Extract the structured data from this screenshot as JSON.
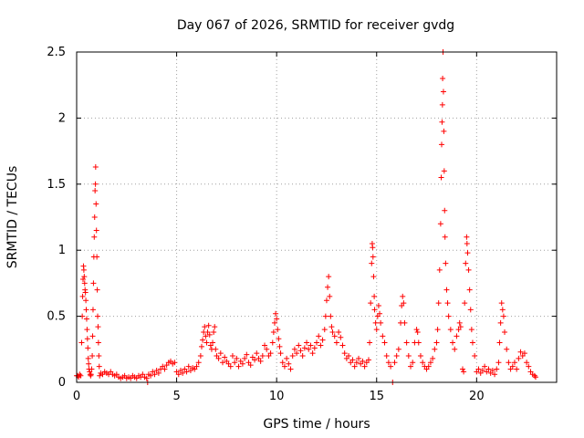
{
  "chart_data": {
    "type": "scatter",
    "title": "Day 067 of 2026, SRMTID for receiver gvdg",
    "xlabel": "GPS time / hours",
    "ylabel": "SRMTID / TECUs",
    "xlim": [
      0,
      24
    ],
    "ylim": [
      0,
      2.5
    ],
    "xticks": [
      0,
      5,
      10,
      15,
      20
    ],
    "xtick_labels": [
      "0",
      "5",
      "10",
      "15",
      "20"
    ],
    "yticks": [
      0,
      0.5,
      1,
      1.5,
      2,
      2.5
    ],
    "ytick_labels": [
      "0",
      "0.5",
      "1",
      "1.5",
      "2",
      "2.5"
    ],
    "grid": true,
    "marker": "+",
    "color": "#ff0000",
    "series": [
      {
        "name": "SRMTID",
        "points": [
          [
            0.0,
            0.05
          ],
          [
            0.05,
            0.05
          ],
          [
            0.1,
            0.04
          ],
          [
            0.15,
            0.06
          ],
          [
            0.2,
            0.05
          ],
          [
            0.25,
            0.3
          ],
          [
            0.28,
            0.5
          ],
          [
            0.3,
            0.65
          ],
          [
            0.32,
            0.78
          ],
          [
            0.34,
            0.88
          ],
          [
            0.36,
            0.85
          ],
          [
            0.38,
            0.8
          ],
          [
            0.4,
            0.75
          ],
          [
            0.42,
            0.7
          ],
          [
            0.44,
            0.68
          ],
          [
            0.46,
            0.62
          ],
          [
            0.48,
            0.55
          ],
          [
            0.5,
            0.48
          ],
          [
            0.52,
            0.4
          ],
          [
            0.54,
            0.33
          ],
          [
            0.56,
            0.26
          ],
          [
            0.58,
            0.18
          ],
          [
            0.6,
            0.14
          ],
          [
            0.62,
            0.1
          ],
          [
            0.65,
            0.08
          ],
          [
            0.68,
            0.06
          ],
          [
            0.7,
            0.05
          ],
          [
            0.72,
            0.06
          ],
          [
            0.75,
            0.1
          ],
          [
            0.78,
            0.2
          ],
          [
            0.8,
            0.35
          ],
          [
            0.82,
            0.55
          ],
          [
            0.84,
            0.75
          ],
          [
            0.86,
            0.95
          ],
          [
            0.88,
            1.1
          ],
          [
            0.9,
            1.25
          ],
          [
            0.92,
            1.45
          ],
          [
            0.94,
            1.5
          ],
          [
            0.95,
            1.63
          ],
          [
            0.97,
            1.35
          ],
          [
            0.99,
            1.15
          ],
          [
            1.01,
            0.95
          ],
          [
            1.03,
            0.7
          ],
          [
            1.05,
            0.5
          ],
          [
            1.07,
            0.42
          ],
          [
            1.09,
            0.3
          ],
          [
            1.11,
            0.2
          ],
          [
            1.13,
            0.12
          ],
          [
            1.15,
            0.05
          ],
          [
            1.2,
            0.07
          ],
          [
            1.3,
            0.06
          ],
          [
            1.4,
            0.08
          ],
          [
            1.5,
            0.07
          ],
          [
            1.6,
            0.06
          ],
          [
            1.7,
            0.08
          ],
          [
            1.8,
            0.06
          ],
          [
            1.9,
            0.05
          ],
          [
            2.0,
            0.06
          ],
          [
            2.1,
            0.04
          ],
          [
            2.2,
            0.03
          ],
          [
            2.3,
            0.04
          ],
          [
            2.4,
            0.05
          ],
          [
            2.5,
            0.03
          ],
          [
            2.6,
            0.04
          ],
          [
            2.7,
            0.03
          ],
          [
            2.8,
            0.05
          ],
          [
            2.9,
            0.04
          ],
          [
            3.0,
            0.03
          ],
          [
            3.1,
            0.05
          ],
          [
            3.2,
            0.04
          ],
          [
            3.3,
            0.06
          ],
          [
            3.4,
            0.04
          ],
          [
            3.5,
            0.03
          ],
          [
            3.55,
            0.0
          ],
          [
            3.6,
            0.06
          ],
          [
            3.7,
            0.05
          ],
          [
            3.8,
            0.08
          ],
          [
            3.9,
            0.06
          ],
          [
            4.0,
            0.09
          ],
          [
            4.1,
            0.07
          ],
          [
            4.2,
            0.1
          ],
          [
            4.3,
            0.12
          ],
          [
            4.4,
            0.1
          ],
          [
            4.5,
            0.13
          ],
          [
            4.6,
            0.15
          ],
          [
            4.7,
            0.16
          ],
          [
            4.8,
            0.14
          ],
          [
            4.9,
            0.15
          ],
          [
            5.0,
            0.08
          ],
          [
            5.1,
            0.06
          ],
          [
            5.2,
            0.09
          ],
          [
            5.3,
            0.07
          ],
          [
            5.4,
            0.1
          ],
          [
            5.5,
            0.08
          ],
          [
            5.6,
            0.12
          ],
          [
            5.7,
            0.09
          ],
          [
            5.8,
            0.11
          ],
          [
            5.9,
            0.1
          ],
          [
            6.0,
            0.12
          ],
          [
            6.1,
            0.15
          ],
          [
            6.2,
            0.2
          ],
          [
            6.25,
            0.27
          ],
          [
            6.3,
            0.32
          ],
          [
            6.35,
            0.38
          ],
          [
            6.4,
            0.42
          ],
          [
            6.45,
            0.35
          ],
          [
            6.5,
            0.3
          ],
          [
            6.55,
            0.38
          ],
          [
            6.6,
            0.43
          ],
          [
            6.65,
            0.36
          ],
          [
            6.7,
            0.28
          ],
          [
            6.75,
            0.25
          ],
          [
            6.8,
            0.3
          ],
          [
            6.85,
            0.38
          ],
          [
            6.9,
            0.42
          ],
          [
            6.95,
            0.25
          ],
          [
            7.0,
            0.2
          ],
          [
            7.1,
            0.18
          ],
          [
            7.2,
            0.22
          ],
          [
            7.3,
            0.15
          ],
          [
            7.4,
            0.19
          ],
          [
            7.5,
            0.16
          ],
          [
            7.6,
            0.14
          ],
          [
            7.7,
            0.12
          ],
          [
            7.8,
            0.2
          ],
          [
            7.9,
            0.15
          ],
          [
            8.0,
            0.18
          ],
          [
            8.1,
            0.12
          ],
          [
            8.2,
            0.16
          ],
          [
            8.3,
            0.14
          ],
          [
            8.4,
            0.18
          ],
          [
            8.5,
            0.21
          ],
          [
            8.6,
            0.15
          ],
          [
            8.7,
            0.13
          ],
          [
            8.8,
            0.19
          ],
          [
            8.9,
            0.17
          ],
          [
            9.0,
            0.22
          ],
          [
            9.1,
            0.18
          ],
          [
            9.2,
            0.16
          ],
          [
            9.3,
            0.2
          ],
          [
            9.4,
            0.28
          ],
          [
            9.5,
            0.25
          ],
          [
            9.6,
            0.2
          ],
          [
            9.7,
            0.22
          ],
          [
            9.8,
            0.3
          ],
          [
            9.85,
            0.38
          ],
          [
            9.9,
            0.45
          ],
          [
            9.95,
            0.52
          ],
          [
            10.0,
            0.48
          ],
          [
            10.05,
            0.4
          ],
          [
            10.1,
            0.33
          ],
          [
            10.15,
            0.27
          ],
          [
            10.2,
            0.22
          ],
          [
            10.3,
            0.15
          ],
          [
            10.4,
            0.12
          ],
          [
            10.5,
            0.18
          ],
          [
            10.6,
            0.14
          ],
          [
            10.7,
            0.1
          ],
          [
            10.8,
            0.2
          ],
          [
            10.9,
            0.25
          ],
          [
            11.0,
            0.22
          ],
          [
            11.1,
            0.28
          ],
          [
            11.2,
            0.24
          ],
          [
            11.3,
            0.2
          ],
          [
            11.4,
            0.26
          ],
          [
            11.5,
            0.3
          ],
          [
            11.6,
            0.25
          ],
          [
            11.7,
            0.28
          ],
          [
            11.8,
            0.22
          ],
          [
            11.9,
            0.26
          ],
          [
            12.0,
            0.3
          ],
          [
            12.1,
            0.35
          ],
          [
            12.2,
            0.28
          ],
          [
            12.3,
            0.32
          ],
          [
            12.4,
            0.4
          ],
          [
            12.45,
            0.5
          ],
          [
            12.5,
            0.62
          ],
          [
            12.55,
            0.72
          ],
          [
            12.6,
            0.8
          ],
          [
            12.65,
            0.65
          ],
          [
            12.7,
            0.5
          ],
          [
            12.75,
            0.42
          ],
          [
            12.8,
            0.38
          ],
          [
            12.9,
            0.35
          ],
          [
            13.0,
            0.3
          ],
          [
            13.1,
            0.38
          ],
          [
            13.2,
            0.34
          ],
          [
            13.3,
            0.28
          ],
          [
            13.4,
            0.22
          ],
          [
            13.5,
            0.18
          ],
          [
            13.6,
            0.2
          ],
          [
            13.7,
            0.15
          ],
          [
            13.8,
            0.17
          ],
          [
            13.9,
            0.12
          ],
          [
            14.0,
            0.15
          ],
          [
            14.1,
            0.18
          ],
          [
            14.2,
            0.14
          ],
          [
            14.3,
            0.16
          ],
          [
            14.4,
            0.12
          ],
          [
            14.5,
            0.15
          ],
          [
            14.6,
            0.17
          ],
          [
            14.65,
            0.3
          ],
          [
            14.7,
            0.6
          ],
          [
            14.75,
            0.9
          ],
          [
            14.78,
            1.05
          ],
          [
            14.8,
            1.02
          ],
          [
            14.82,
            0.95
          ],
          [
            14.85,
            0.8
          ],
          [
            14.88,
            0.65
          ],
          [
            14.9,
            0.55
          ],
          [
            14.95,
            0.45
          ],
          [
            15.0,
            0.4
          ],
          [
            15.05,
            0.5
          ],
          [
            15.1,
            0.58
          ],
          [
            15.15,
            0.52
          ],
          [
            15.2,
            0.45
          ],
          [
            15.3,
            0.35
          ],
          [
            15.4,
            0.3
          ],
          [
            15.5,
            0.2
          ],
          [
            15.6,
            0.15
          ],
          [
            15.7,
            0.12
          ],
          [
            15.8,
            0.0
          ],
          [
            15.9,
            0.15
          ],
          [
            16.0,
            0.2
          ],
          [
            16.1,
            0.25
          ],
          [
            16.2,
            0.45
          ],
          [
            16.25,
            0.58
          ],
          [
            16.3,
            0.65
          ],
          [
            16.35,
            0.6
          ],
          [
            16.4,
            0.45
          ],
          [
            16.5,
            0.3
          ],
          [
            16.6,
            0.2
          ],
          [
            16.7,
            0.12
          ],
          [
            16.8,
            0.15
          ],
          [
            16.9,
            0.3
          ],
          [
            17.0,
            0.4
          ],
          [
            17.05,
            0.38
          ],
          [
            17.1,
            0.3
          ],
          [
            17.2,
            0.2
          ],
          [
            17.3,
            0.15
          ],
          [
            17.4,
            0.12
          ],
          [
            17.5,
            0.1
          ],
          [
            17.6,
            0.12
          ],
          [
            17.7,
            0.15
          ],
          [
            17.8,
            0.18
          ],
          [
            17.9,
            0.25
          ],
          [
            18.0,
            0.3
          ],
          [
            18.05,
            0.4
          ],
          [
            18.1,
            0.6
          ],
          [
            18.15,
            0.85
          ],
          [
            18.2,
            1.2
          ],
          [
            18.23,
            1.55
          ],
          [
            18.25,
            1.8
          ],
          [
            18.27,
            1.97
          ],
          [
            18.29,
            2.1
          ],
          [
            18.3,
            2.3
          ],
          [
            18.32,
            2.5
          ],
          [
            18.34,
            2.2
          ],
          [
            18.36,
            1.9
          ],
          [
            18.38,
            1.6
          ],
          [
            18.4,
            1.3
          ],
          [
            18.42,
            1.1
          ],
          [
            18.45,
            0.9
          ],
          [
            18.5,
            0.7
          ],
          [
            18.55,
            0.6
          ],
          [
            18.6,
            0.5
          ],
          [
            18.7,
            0.4
          ],
          [
            18.8,
            0.3
          ],
          [
            18.9,
            0.25
          ],
          [
            19.0,
            0.35
          ],
          [
            19.1,
            0.4
          ],
          [
            19.15,
            0.45
          ],
          [
            19.2,
            0.42
          ],
          [
            19.3,
            0.1
          ],
          [
            19.35,
            0.08
          ],
          [
            19.4,
            0.6
          ],
          [
            19.45,
            0.9
          ],
          [
            19.5,
            1.1
          ],
          [
            19.52,
            1.05
          ],
          [
            19.55,
            0.98
          ],
          [
            19.6,
            0.85
          ],
          [
            19.65,
            0.7
          ],
          [
            19.7,
            0.55
          ],
          [
            19.75,
            0.4
          ],
          [
            19.8,
            0.3
          ],
          [
            19.9,
            0.2
          ],
          [
            20.0,
            0.08
          ],
          [
            20.1,
            0.1
          ],
          [
            20.2,
            0.07
          ],
          [
            20.3,
            0.09
          ],
          [
            20.4,
            0.12
          ],
          [
            20.5,
            0.08
          ],
          [
            20.6,
            0.1
          ],
          [
            20.7,
            0.07
          ],
          [
            20.8,
            0.09
          ],
          [
            20.9,
            0.06
          ],
          [
            21.0,
            0.1
          ],
          [
            21.1,
            0.15
          ],
          [
            21.15,
            0.3
          ],
          [
            21.2,
            0.45
          ],
          [
            21.25,
            0.6
          ],
          [
            21.3,
            0.55
          ],
          [
            21.35,
            0.5
          ],
          [
            21.4,
            0.38
          ],
          [
            21.5,
            0.25
          ],
          [
            21.6,
            0.15
          ],
          [
            21.7,
            0.1
          ],
          [
            21.8,
            0.12
          ],
          [
            21.9,
            0.15
          ],
          [
            22.0,
            0.1
          ],
          [
            22.1,
            0.18
          ],
          [
            22.2,
            0.23
          ],
          [
            22.3,
            0.2
          ],
          [
            22.4,
            0.22
          ],
          [
            22.5,
            0.15
          ],
          [
            22.6,
            0.12
          ],
          [
            22.7,
            0.08
          ],
          [
            22.8,
            0.06
          ],
          [
            22.9,
            0.05
          ],
          [
            22.95,
            0.04
          ]
        ]
      }
    ]
  }
}
